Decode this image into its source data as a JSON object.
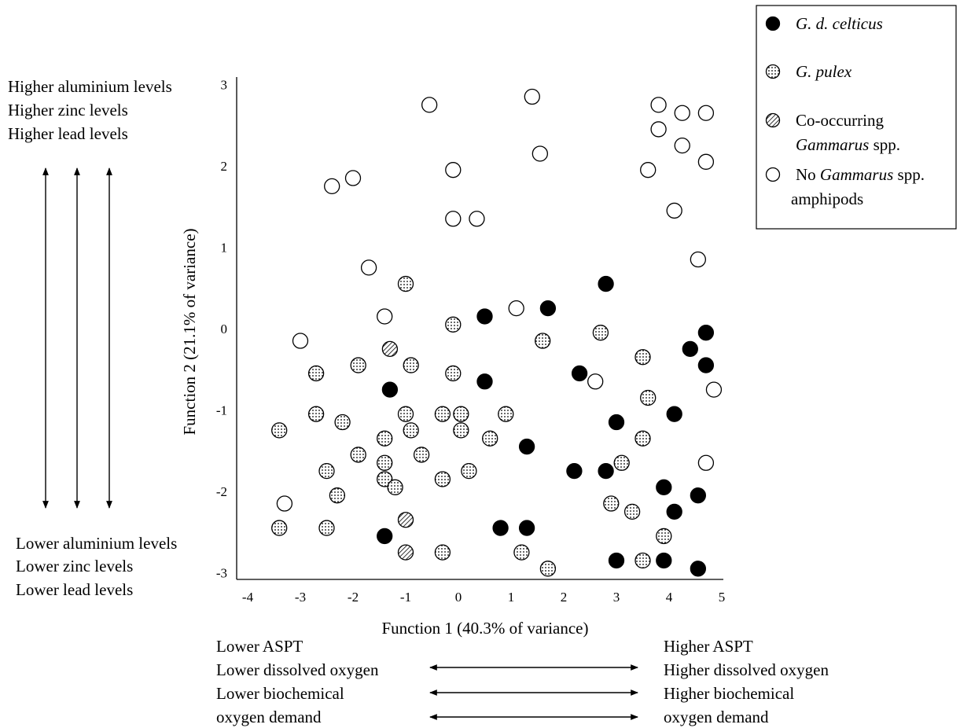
{
  "chart_data": {
    "type": "scatter",
    "xlabel": "Function 1 (40.3% of variance)",
    "ylabel": "Function 2 (21.1% of variance)",
    "xlim": [
      -4,
      5
    ],
    "ylim": [
      -3,
      3
    ],
    "x_ticks": [
      "-4",
      "-3",
      "-2",
      "-1",
      "0",
      "1",
      "2",
      "3",
      "4",
      "5"
    ],
    "y_ticks": [
      "3",
      "2",
      "1",
      "0",
      "-1",
      "-2",
      "-3"
    ],
    "grid": false,
    "legend_position": "top-right",
    "legend": [
      {
        "key": "celticus",
        "parts": [
          {
            "text": "G. d. celticus",
            "italic": true
          }
        ]
      },
      {
        "key": "pulex",
        "parts": [
          {
            "text": "G. pulex",
            "italic": true
          }
        ]
      },
      {
        "key": "co",
        "parts": [
          {
            "text": "Co-occurring",
            "italic": false
          }
        ],
        "parts2": [
          {
            "text": "Gammarus",
            "italic": true
          },
          {
            "text": " spp.",
            "italic": false
          }
        ]
      },
      {
        "key": "none",
        "parts": [
          {
            "text": "No ",
            "italic": false
          },
          {
            "text": "Gammarus",
            "italic": true
          },
          {
            "text": " spp.",
            "italic": false
          }
        ],
        "parts2": [
          {
            "text": "amphipods",
            "italic": false
          }
        ]
      }
    ],
    "series": [
      {
        "key": "celticus",
        "name": "G. d. celticus",
        "points": [
          [
            2.8,
            0.55
          ],
          [
            1.7,
            0.25
          ],
          [
            0.5,
            0.15
          ],
          [
            4.7,
            -0.05
          ],
          [
            4.4,
            -0.25
          ],
          [
            4.7,
            -0.45
          ],
          [
            2.3,
            -0.55
          ],
          [
            0.5,
            -0.65
          ],
          [
            -1.3,
            -0.75
          ],
          [
            4.1,
            -1.05
          ],
          [
            3.0,
            -1.15
          ],
          [
            1.3,
            -1.45
          ],
          [
            2.2,
            -1.75
          ],
          [
            2.8,
            -1.75
          ],
          [
            3.9,
            -1.95
          ],
          [
            4.55,
            -2.05
          ],
          [
            4.1,
            -2.25
          ],
          [
            0.8,
            -2.45
          ],
          [
            1.3,
            -2.45
          ],
          [
            -1.4,
            -2.55
          ],
          [
            3.0,
            -2.85
          ],
          [
            3.9,
            -2.85
          ],
          [
            4.55,
            -2.95
          ]
        ]
      },
      {
        "key": "pulex",
        "name": "G. pulex",
        "points": [
          [
            -1.0,
            0.55
          ],
          [
            -0.1,
            0.05
          ],
          [
            1.6,
            -0.15
          ],
          [
            2.7,
            -0.05
          ],
          [
            3.5,
            -0.35
          ],
          [
            -2.7,
            -0.55
          ],
          [
            -1.9,
            -0.45
          ],
          [
            -0.9,
            -0.45
          ],
          [
            -0.1,
            -0.55
          ],
          [
            3.6,
            -0.85
          ],
          [
            -2.7,
            -1.05
          ],
          [
            -2.2,
            -1.15
          ],
          [
            -1.0,
            -1.05
          ],
          [
            -0.3,
            -1.05
          ],
          [
            0.05,
            -1.05
          ],
          [
            0.9,
            -1.05
          ],
          [
            -0.9,
            -1.25
          ],
          [
            0.05,
            -1.25
          ],
          [
            -3.4,
            -1.25
          ],
          [
            -1.4,
            -1.35
          ],
          [
            0.6,
            -1.35
          ],
          [
            3.5,
            -1.35
          ],
          [
            -1.9,
            -1.55
          ],
          [
            -0.7,
            -1.55
          ],
          [
            -1.4,
            -1.65
          ],
          [
            3.1,
            -1.65
          ],
          [
            -2.5,
            -1.75
          ],
          [
            0.2,
            -1.75
          ],
          [
            -1.4,
            -1.85
          ],
          [
            -0.3,
            -1.85
          ],
          [
            -1.2,
            -1.95
          ],
          [
            -2.3,
            -2.05
          ],
          [
            2.9,
            -2.15
          ],
          [
            3.3,
            -2.25
          ],
          [
            -3.4,
            -2.45
          ],
          [
            -2.5,
            -2.45
          ],
          [
            3.9,
            -2.55
          ],
          [
            -0.3,
            -2.75
          ],
          [
            1.2,
            -2.75
          ],
          [
            3.5,
            -2.85
          ],
          [
            1.7,
            -2.95
          ]
        ]
      },
      {
        "key": "co",
        "name": "Co-occurring Gammarus spp.",
        "points": [
          [
            -1.3,
            -0.25
          ],
          [
            -1.0,
            -2.35
          ],
          [
            -1.0,
            -2.75
          ]
        ]
      },
      {
        "key": "none",
        "name": "No Gammarus spp. amphipods",
        "points": [
          [
            -0.55,
            2.75
          ],
          [
            1.4,
            2.85
          ],
          [
            3.8,
            2.75
          ],
          [
            4.25,
            2.65
          ],
          [
            4.7,
            2.65
          ],
          [
            3.8,
            2.45
          ],
          [
            4.25,
            2.25
          ],
          [
            1.55,
            2.15
          ],
          [
            4.7,
            2.05
          ],
          [
            -0.1,
            1.95
          ],
          [
            3.6,
            1.95
          ],
          [
            -2.0,
            1.85
          ],
          [
            -2.4,
            1.75
          ],
          [
            4.1,
            1.45
          ],
          [
            -0.1,
            1.35
          ],
          [
            0.35,
            1.35
          ],
          [
            4.55,
            0.85
          ],
          [
            -1.7,
            0.75
          ],
          [
            1.1,
            0.25
          ],
          [
            -1.4,
            0.15
          ],
          [
            -3.0,
            -0.15
          ],
          [
            2.6,
            -0.65
          ],
          [
            4.85,
            -0.75
          ],
          [
            4.7,
            -1.65
          ],
          [
            -3.3,
            -2.15
          ]
        ]
      }
    ]
  },
  "annotations": {
    "y_high": [
      "Higher aluminium levels",
      "Higher zinc levels",
      "Higher lead levels"
    ],
    "y_low": [
      "Lower aluminium levels",
      "Lower zinc levels",
      "Lower lead levels"
    ],
    "x_low": [
      "Lower ASPT",
      "Lower dissolved oxygen",
      "Lower biochemical",
      "oxygen demand"
    ],
    "x_high": [
      "Higher ASPT",
      "Higher dissolved oxygen",
      "Higher biochemical",
      "oxygen demand"
    ]
  },
  "colors": {
    "celticus_fill": "#000000",
    "pulex_fill": "#ffffff",
    "none_fill": "#ffffff",
    "stroke": "#000000"
  }
}
